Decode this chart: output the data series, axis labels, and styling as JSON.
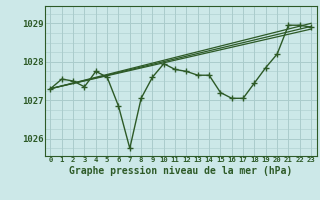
{
  "title": "Graphe pression niveau de la mer (hPa)",
  "background_color": "#cce8e8",
  "grid_color": "#aacccc",
  "line_color": "#2d5a27",
  "xlim": [
    -0.5,
    23.5
  ],
  "ylim": [
    1025.55,
    1029.45
  ],
  "yticks": [
    1026,
    1027,
    1028,
    1029
  ],
  "xtick_labels": [
    "0",
    "1",
    "2",
    "3",
    "4",
    "5",
    "6",
    "7",
    "8",
    "9",
    "10",
    "11",
    "12",
    "13",
    "14",
    "15",
    "16",
    "17",
    "18",
    "19",
    "20",
    "21",
    "22",
    "23"
  ],
  "series1": [
    1027.3,
    1027.55,
    1027.5,
    1027.35,
    1027.75,
    1027.6,
    1026.85,
    1025.75,
    1027.05,
    1027.6,
    1027.95,
    1027.8,
    1027.75,
    1027.65,
    1027.65,
    1027.2,
    1027.05,
    1027.05,
    1027.45,
    1027.85,
    1028.2,
    1028.95,
    1028.95,
    1028.9
  ],
  "series2_x": [
    0,
    23
  ],
  "series2_y": [
    1027.3,
    1028.85
  ],
  "series3_x": [
    0,
    23
  ],
  "series3_y": [
    1027.3,
    1029.0
  ],
  "series4_x": [
    0,
    23
  ],
  "series4_y": [
    1027.3,
    1028.92
  ]
}
